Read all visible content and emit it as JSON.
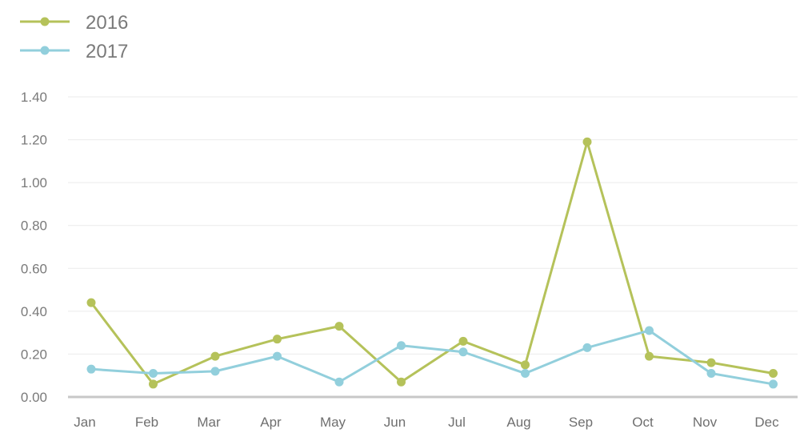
{
  "chart_data": {
    "type": "line",
    "title": "",
    "xlabel": "",
    "ylabel": "",
    "categories": [
      "Jan",
      "Feb",
      "Mar",
      "Apr",
      "May",
      "Jun",
      "Jul",
      "Aug",
      "Sep",
      "Oct",
      "Nov",
      "Dec"
    ],
    "ylim": [
      0,
      1.4
    ],
    "yticks": [
      "0.00",
      "0.20",
      "0.40",
      "0.60",
      "0.80",
      "1.00",
      "1.20",
      "1.40"
    ],
    "grid": true,
    "legend_position": "top-left",
    "series": [
      {
        "name": "2016",
        "color": "#b5c25a",
        "values": [
          0.44,
          0.06,
          0.19,
          0.27,
          0.33,
          0.07,
          0.26,
          0.15,
          1.19,
          0.19,
          0.16,
          0.11
        ]
      },
      {
        "name": "2017",
        "color": "#92cfdc",
        "values": [
          0.13,
          0.11,
          0.12,
          0.19,
          0.07,
          0.24,
          0.21,
          0.11,
          0.23,
          0.31,
          0.11,
          0.06
        ]
      }
    ]
  }
}
